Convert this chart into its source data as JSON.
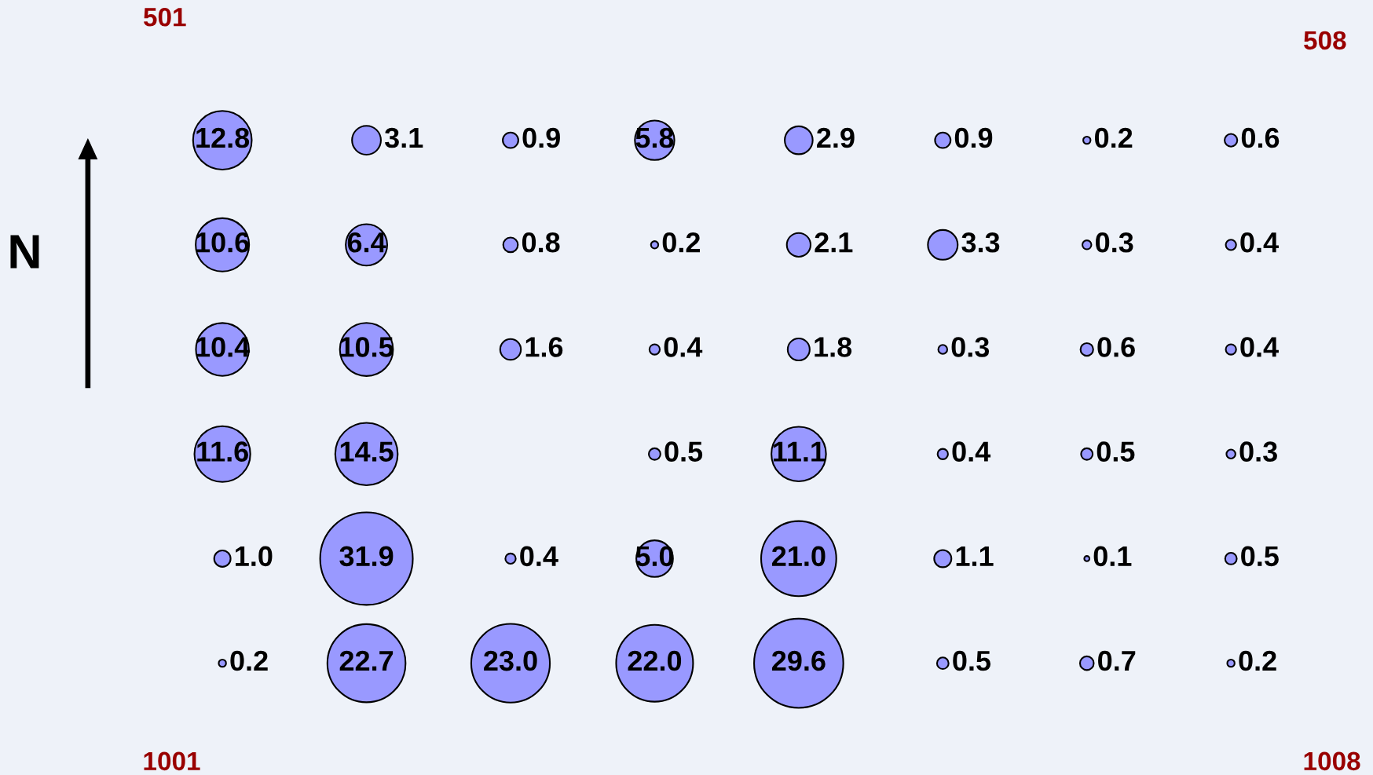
{
  "chart_data": {
    "type": "other",
    "color": "#9999ff",
    "values": [
      12.8,
      3.1,
      0.9,
      5.8,
      2.9,
      0.9,
      0.2,
      0.6,
      10.6,
      6.4,
      0.8,
      0.2,
      2.1,
      3.3,
      0.3,
      0.4,
      10.4,
      10.5,
      1.6,
      0.4,
      1.8,
      0.3,
      0.6,
      0.4,
      11.6,
      14.5,
      null,
      0.5,
      11.1,
      0.4,
      0.5,
      0.3,
      1.0,
      31.9,
      0.4,
      5.0,
      21.0,
      1.1,
      0.1,
      0.5,
      0.2,
      22.7,
      23.0,
      22.0,
      29.6,
      0.5,
      0.7,
      0.2
    ],
    "value_labels": [
      "12.8",
      "3.1",
      "0.9",
      "5.8",
      "2.9",
      "0.9",
      "0.2",
      "0.6",
      "10.6",
      "6.4",
      "0.8",
      "0.2",
      "2.1",
      "3.3",
      "0.3",
      "0.4",
      "10.4",
      "10.5",
      "1.6",
      "0.4",
      "1.8",
      "0.3",
      "0.6",
      "0.4",
      "11.6",
      "14.5",
      null,
      "0.5",
      "11.1",
      "0.4",
      "0.5",
      "0.3",
      "1.0",
      "31.9",
      "0.4",
      "5.0",
      "21.0",
      "1.1",
      "0.1",
      "0.5",
      "0.2",
      "22.7",
      "23.0",
      "22.0",
      "29.6",
      "0.5",
      "0.7",
      "0.2"
    ],
    "annotations": [
      "501",
      "508",
      "1001",
      "1008",
      "N"
    ]
  }
}
